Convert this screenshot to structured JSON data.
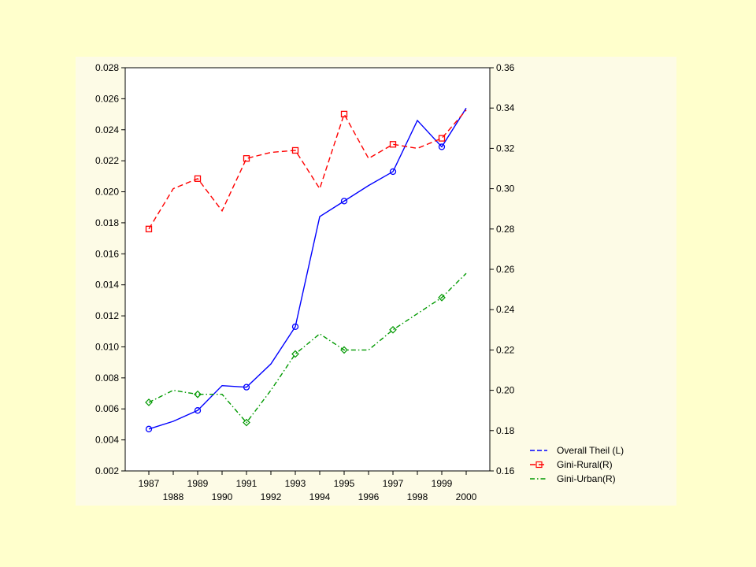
{
  "colors": {
    "slide_background": "#ffffcc",
    "panel_background": "#fdfbe6",
    "plot_background": "#ffffff",
    "overall_theil": "#0000ff",
    "gini_rural": "#ff0000",
    "gini_urban": "#009900"
  },
  "chart_data": {
    "type": "line",
    "title": "",
    "xlabel": "",
    "ylabel_left": "",
    "ylabel_right": "",
    "x": [
      1987,
      1988,
      1989,
      1990,
      1991,
      1992,
      1993,
      1994,
      1995,
      1996,
      1997,
      1998,
      1999,
      2000
    ],
    "x_tick_labels_row1": [
      "1987",
      "1989",
      "1991",
      "1993",
      "1995",
      "1997",
      "1999"
    ],
    "x_tick_labels_row2": [
      "1988",
      "1990",
      "1992",
      "1994",
      "1996",
      "1998",
      "2000"
    ],
    "y_left": {
      "lim": [
        0.002,
        0.028
      ],
      "ticks": [
        "0.002",
        "0.004",
        "0.006",
        "0.008",
        "0.010",
        "0.012",
        "0.014",
        "0.016",
        "0.018",
        "0.020",
        "0.022",
        "0.024",
        "0.026",
        "0.028"
      ]
    },
    "y_right": {
      "lim": [
        0.16,
        0.36
      ],
      "ticks": [
        "0.16",
        "0.18",
        "0.20",
        "0.22",
        "0.24",
        "0.26",
        "0.28",
        "0.30",
        "0.32",
        "0.34",
        "0.36"
      ]
    },
    "grid": false,
    "legend_position": "bottom-right outside plot",
    "series": [
      {
        "name": "Overall Theil (L)",
        "axis": "left",
        "marker": "circle",
        "line_style": "solid",
        "values": [
          0.0047,
          0.0052,
          0.0059,
          0.0075,
          0.0074,
          0.0089,
          0.0113,
          0.0184,
          0.0194,
          0.0204,
          0.0213,
          0.0246,
          0.0229,
          0.0254
        ]
      },
      {
        "name": "Gini-Rural(R)",
        "axis": "right",
        "marker": "square",
        "line_style": "dash",
        "values": [
          0.28,
          0.3,
          0.305,
          0.289,
          0.315,
          0.318,
          0.319,
          0.3,
          0.337,
          0.315,
          0.322,
          0.32,
          0.325,
          0.339
        ]
      },
      {
        "name": "Gini-Urban(R)",
        "axis": "right",
        "marker": "diamond",
        "line_style": "dashdot",
        "values": [
          0.194,
          0.2,
          0.198,
          0.198,
          0.184,
          0.2,
          0.218,
          0.228,
          0.22,
          0.22,
          0.23,
          0.238,
          0.246,
          0.258
        ]
      }
    ]
  }
}
